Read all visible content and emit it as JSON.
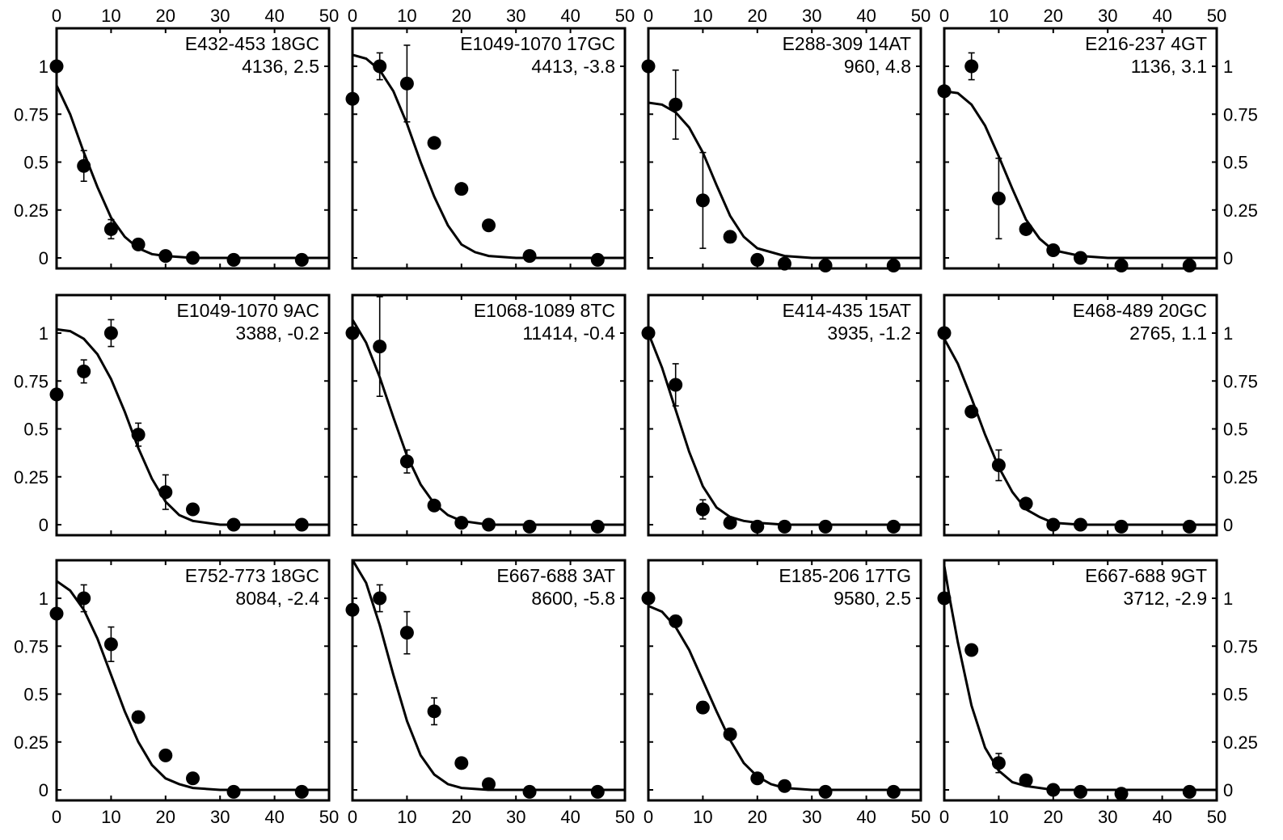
{
  "figure": {
    "top_axis_ticks": [
      "0",
      "10",
      "20",
      "30",
      "40",
      "50"
    ],
    "bottom_axis_ticks": [
      "0",
      "10",
      "20",
      "30",
      "40",
      "50"
    ],
    "left_axis_ticks": [
      "0",
      "0.25",
      "0.5",
      "0.75",
      "1"
    ],
    "right_axis_ticks": [
      "0",
      "0.25",
      "0.5",
      "0.75",
      "1"
    ]
  },
  "chart_data": [
    {
      "type": "scatter",
      "title": "E432-453 18GC",
      "subtitle": "4136, 2.5",
      "xlim": [
        0,
        50
      ],
      "ylim": [
        -0.05,
        1.2
      ],
      "points": [
        {
          "x": 0,
          "y": 1.0
        },
        {
          "x": 5,
          "y": 0.48,
          "err": 0.08
        },
        {
          "x": 10,
          "y": 0.15,
          "err": 0.05
        },
        {
          "x": 15,
          "y": 0.07
        },
        {
          "x": 20,
          "y": 0.01
        },
        {
          "x": 25,
          "y": 0.0
        },
        {
          "x": 32.5,
          "y": -0.01
        },
        {
          "x": 45,
          "y": -0.01
        }
      ],
      "curve": {
        "x": [
          0,
          2.5,
          5,
          7.5,
          10,
          12.5,
          15,
          17.5,
          20,
          25,
          30,
          40,
          50
        ],
        "y": [
          0.9,
          0.75,
          0.55,
          0.37,
          0.21,
          0.11,
          0.05,
          0.02,
          0.01,
          0,
          0,
          0,
          0
        ]
      }
    },
    {
      "type": "scatter",
      "title": "E1049-1070 17GC",
      "subtitle": "4413, -3.8",
      "xlim": [
        0,
        50
      ],
      "ylim": [
        -0.05,
        1.2
      ],
      "points": [
        {
          "x": 0,
          "y": 0.83
        },
        {
          "x": 5,
          "y": 1.0,
          "err": 0.07
        },
        {
          "x": 10,
          "y": 0.91,
          "err": 0.2
        },
        {
          "x": 15,
          "y": 0.6
        },
        {
          "x": 20,
          "y": 0.36
        },
        {
          "x": 25,
          "y": 0.17
        },
        {
          "x": 32.5,
          "y": 0.01
        },
        {
          "x": 45,
          "y": -0.01
        }
      ],
      "curve": {
        "x": [
          0,
          2.5,
          5,
          7.5,
          10,
          12.5,
          15,
          17.5,
          20,
          22.5,
          25,
          30,
          40,
          50
        ],
        "y": [
          1.06,
          1.04,
          0.98,
          0.87,
          0.7,
          0.5,
          0.32,
          0.17,
          0.07,
          0.03,
          0.01,
          0,
          0,
          0
        ]
      }
    },
    {
      "type": "scatter",
      "title": "E288-309 14AT",
      "subtitle": "960, 4.8",
      "xlim": [
        0,
        50
      ],
      "ylim": [
        -0.05,
        1.2
      ],
      "points": [
        {
          "x": 0,
          "y": 1.0
        },
        {
          "x": 5,
          "y": 0.8,
          "err": 0.18
        },
        {
          "x": 10,
          "y": 0.3,
          "err": 0.25
        },
        {
          "x": 15,
          "y": 0.11,
          "err": 0.03
        },
        {
          "x": 20,
          "y": -0.01
        },
        {
          "x": 25,
          "y": -0.03
        },
        {
          "x": 32.5,
          "y": -0.04
        },
        {
          "x": 45,
          "y": -0.04
        }
      ],
      "curve": {
        "x": [
          0,
          2.5,
          5,
          7.5,
          10,
          12.5,
          15,
          17.5,
          20,
          25,
          30,
          40,
          50
        ],
        "y": [
          0.81,
          0.8,
          0.76,
          0.68,
          0.55,
          0.38,
          0.22,
          0.11,
          0.05,
          0.01,
          0,
          0,
          0
        ]
      }
    },
    {
      "type": "scatter",
      "title": "E216-237 4GT",
      "subtitle": "1136, 3.1",
      "xlim": [
        0,
        50
      ],
      "ylim": [
        -0.05,
        1.2
      ],
      "points": [
        {
          "x": 0,
          "y": 0.87
        },
        {
          "x": 5,
          "y": 1.0,
          "err": 0.07
        },
        {
          "x": 10,
          "y": 0.31,
          "err": 0.21
        },
        {
          "x": 15,
          "y": 0.15
        },
        {
          "x": 20,
          "y": 0.04
        },
        {
          "x": 25,
          "y": 0.0
        },
        {
          "x": 32.5,
          "y": -0.04
        },
        {
          "x": 45,
          "y": -0.04
        }
      ],
      "curve": {
        "x": [
          0,
          2.5,
          5,
          7.5,
          10,
          12.5,
          15,
          17.5,
          20,
          25,
          30,
          40,
          50
        ],
        "y": [
          0.87,
          0.86,
          0.8,
          0.69,
          0.53,
          0.36,
          0.2,
          0.1,
          0.04,
          0.01,
          0,
          0,
          0
        ]
      }
    },
    {
      "type": "scatter",
      "title": "E1049-1070 9AC",
      "subtitle": "3388, -0.2",
      "xlim": [
        0,
        50
      ],
      "ylim": [
        -0.05,
        1.2
      ],
      "points": [
        {
          "x": 0,
          "y": 0.68
        },
        {
          "x": 5,
          "y": 0.8,
          "err": 0.06
        },
        {
          "x": 10,
          "y": 1.0,
          "err": 0.07
        },
        {
          "x": 15,
          "y": 0.47,
          "err": 0.06
        },
        {
          "x": 20,
          "y": 0.17,
          "err": 0.09
        },
        {
          "x": 25,
          "y": 0.08
        },
        {
          "x": 32.5,
          "y": 0.0
        },
        {
          "x": 45,
          "y": 0.0
        }
      ],
      "curve": {
        "x": [
          0,
          2.5,
          5,
          7.5,
          10,
          12.5,
          15,
          17.5,
          20,
          22.5,
          25,
          30,
          40,
          50
        ],
        "y": [
          1.02,
          1.01,
          0.97,
          0.89,
          0.76,
          0.59,
          0.4,
          0.24,
          0.12,
          0.05,
          0.02,
          0,
          0,
          0
        ]
      }
    },
    {
      "type": "scatter",
      "title": "E1068-1089 8TC",
      "subtitle": "11414, -0.4",
      "xlim": [
        0,
        50
      ],
      "ylim": [
        -0.05,
        1.2
      ],
      "points": [
        {
          "x": 0,
          "y": 1.0
        },
        {
          "x": 5,
          "y": 0.93,
          "err": 0.26
        },
        {
          "x": 10,
          "y": 0.33,
          "err": 0.06
        },
        {
          "x": 15,
          "y": 0.1
        },
        {
          "x": 20,
          "y": 0.01
        },
        {
          "x": 25,
          "y": 0.0
        },
        {
          "x": 32.5,
          "y": -0.01
        },
        {
          "x": 45,
          "y": -0.01
        }
      ],
      "curve": {
        "x": [
          0,
          2.5,
          5,
          7.5,
          10,
          12.5,
          15,
          17.5,
          20,
          25,
          30,
          40,
          50
        ],
        "y": [
          1.07,
          0.95,
          0.77,
          0.56,
          0.36,
          0.21,
          0.11,
          0.05,
          0.02,
          0,
          0,
          0,
          0
        ]
      }
    },
    {
      "type": "scatter",
      "title": "E414-435 15AT",
      "subtitle": "3935, -1.2",
      "xlim": [
        0,
        50
      ],
      "ylim": [
        -0.05,
        1.2
      ],
      "points": [
        {
          "x": 0,
          "y": 1.0
        },
        {
          "x": 5,
          "y": 0.73,
          "err": 0.11
        },
        {
          "x": 10,
          "y": 0.08,
          "err": 0.05
        },
        {
          "x": 15,
          "y": 0.01
        },
        {
          "x": 20,
          "y": -0.01
        },
        {
          "x": 25,
          "y": -0.01
        },
        {
          "x": 32.5,
          "y": -0.01
        },
        {
          "x": 45,
          "y": -0.01
        }
      ],
      "curve": {
        "x": [
          0,
          2.5,
          5,
          7.5,
          10,
          12.5,
          15,
          17.5,
          20,
          25,
          30,
          40,
          50
        ],
        "y": [
          1.0,
          0.82,
          0.6,
          0.38,
          0.2,
          0.09,
          0.04,
          0.02,
          0.01,
          0,
          0,
          0,
          0
        ]
      }
    },
    {
      "type": "scatter",
      "title": "E468-489 20GC",
      "subtitle": "2765, 1.1",
      "xlim": [
        0,
        50
      ],
      "ylim": [
        -0.05,
        1.2
      ],
      "points": [
        {
          "x": 0,
          "y": 1.0
        },
        {
          "x": 5,
          "y": 0.59
        },
        {
          "x": 10,
          "y": 0.31,
          "err": 0.08
        },
        {
          "x": 15,
          "y": 0.11
        },
        {
          "x": 20,
          "y": 0.0
        },
        {
          "x": 25,
          "y": 0.0
        },
        {
          "x": 32.5,
          "y": -0.01
        },
        {
          "x": 45,
          "y": -0.01
        }
      ],
      "curve": {
        "x": [
          0,
          2.5,
          5,
          7.5,
          10,
          12.5,
          15,
          17.5,
          20,
          25,
          30,
          40,
          50
        ],
        "y": [
          0.97,
          0.84,
          0.66,
          0.47,
          0.3,
          0.17,
          0.08,
          0.04,
          0.01,
          0,
          0,
          0,
          0
        ]
      }
    },
    {
      "type": "scatter",
      "title": "E752-773 18GC",
      "subtitle": "8084, -2.4",
      "xlim": [
        0,
        50
      ],
      "ylim": [
        -0.05,
        1.2
      ],
      "points": [
        {
          "x": 0,
          "y": 0.92
        },
        {
          "x": 5,
          "y": 1.0,
          "err": 0.07
        },
        {
          "x": 10,
          "y": 0.76,
          "err": 0.09
        },
        {
          "x": 15,
          "y": 0.38,
          "err": 0.03
        },
        {
          "x": 20,
          "y": 0.18
        },
        {
          "x": 25,
          "y": 0.06
        },
        {
          "x": 32.5,
          "y": -0.01
        },
        {
          "x": 45,
          "y": -0.01
        }
      ],
      "curve": {
        "x": [
          0,
          2.5,
          5,
          7.5,
          10,
          12.5,
          15,
          17.5,
          20,
          22.5,
          25,
          30,
          40,
          50
        ],
        "y": [
          1.09,
          1.04,
          0.94,
          0.79,
          0.6,
          0.41,
          0.25,
          0.13,
          0.06,
          0.03,
          0.01,
          0,
          0,
          0
        ]
      }
    },
    {
      "type": "scatter",
      "title": "E667-688 3AT",
      "subtitle": "8600, -5.8",
      "xlim": [
        0,
        50
      ],
      "ylim": [
        -0.05,
        1.2
      ],
      "points": [
        {
          "x": 0,
          "y": 0.94
        },
        {
          "x": 5,
          "y": 1.0,
          "err": 0.07
        },
        {
          "x": 10,
          "y": 0.82,
          "err": 0.11
        },
        {
          "x": 15,
          "y": 0.41,
          "err": 0.07
        },
        {
          "x": 20,
          "y": 0.14
        },
        {
          "x": 25,
          "y": 0.03
        },
        {
          "x": 32.5,
          "y": -0.01
        },
        {
          "x": 45,
          "y": -0.01
        }
      ],
      "curve": {
        "x": [
          0,
          2.5,
          5,
          7.5,
          10,
          12.5,
          15,
          17.5,
          20,
          25,
          30,
          40,
          50
        ],
        "y": [
          1.2,
          1.08,
          0.86,
          0.6,
          0.36,
          0.18,
          0.08,
          0.03,
          0.01,
          0,
          0,
          0,
          0
        ]
      }
    },
    {
      "type": "scatter",
      "title": "E185-206 17TG",
      "subtitle": "9580, 2.5",
      "xlim": [
        0,
        50
      ],
      "ylim": [
        -0.05,
        1.2
      ],
      "points": [
        {
          "x": 0,
          "y": 1.0
        },
        {
          "x": 5,
          "y": 0.88,
          "err": 0.03
        },
        {
          "x": 10,
          "y": 0.43,
          "err": 0.03
        },
        {
          "x": 15,
          "y": 0.29
        },
        {
          "x": 20,
          "y": 0.06
        },
        {
          "x": 25,
          "y": 0.02
        },
        {
          "x": 32.5,
          "y": -0.01
        },
        {
          "x": 45,
          "y": -0.01
        }
      ],
      "curve": {
        "x": [
          0,
          2.5,
          5,
          7.5,
          10,
          12.5,
          15,
          17.5,
          20,
          22.5,
          25,
          30,
          40,
          50
        ],
        "y": [
          0.96,
          0.93,
          0.85,
          0.73,
          0.57,
          0.41,
          0.26,
          0.14,
          0.07,
          0.03,
          0.01,
          0,
          0,
          0
        ]
      }
    },
    {
      "type": "scatter",
      "title": "E667-688 9GT",
      "subtitle": "3712, -2.9",
      "xlim": [
        0,
        50
      ],
      "ylim": [
        -0.05,
        1.2
      ],
      "points": [
        {
          "x": 0,
          "y": 1.0
        },
        {
          "x": 5,
          "y": 0.73
        },
        {
          "x": 10,
          "y": 0.14,
          "err": 0.05
        },
        {
          "x": 15,
          "y": 0.05
        },
        {
          "x": 20,
          "y": 0.0
        },
        {
          "x": 25,
          "y": -0.01
        },
        {
          "x": 32.5,
          "y": -0.02
        },
        {
          "x": 45,
          "y": -0.01
        }
      ],
      "curve": {
        "x": [
          0,
          1,
          2.5,
          5,
          7.5,
          10,
          12.5,
          15,
          17.5,
          20,
          25,
          30,
          40,
          50
        ],
        "y": [
          1.17,
          1.0,
          0.77,
          0.44,
          0.22,
          0.1,
          0.04,
          0.02,
          0.01,
          0,
          0,
          0,
          0,
          0
        ]
      }
    }
  ]
}
